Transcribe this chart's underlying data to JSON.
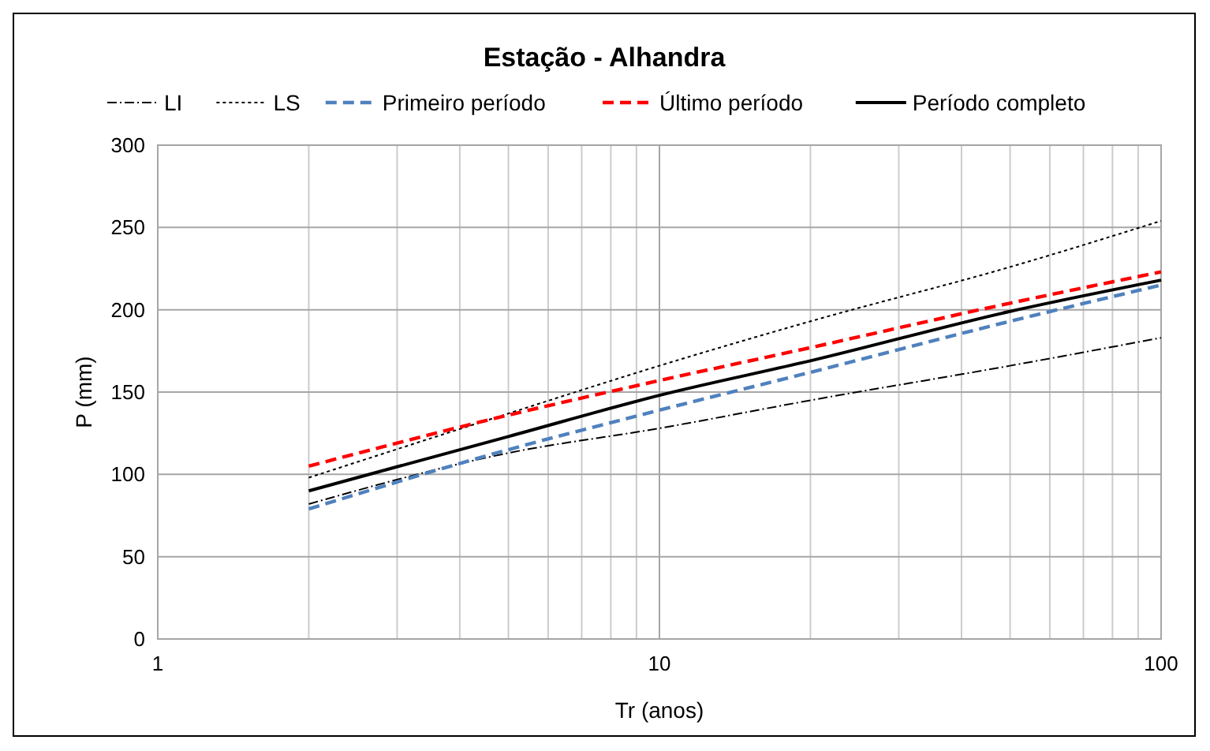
{
  "chart_data": {
    "type": "line",
    "title": "Estação - Alhandra",
    "xlabel": "Tr (anos)",
    "ylabel": "P (mm)",
    "log": "x",
    "grid": true,
    "legend": "top",
    "marker": "none",
    "x": [
      2,
      5,
      10,
      20,
      50,
      100
    ],
    "xlim": [
      1,
      100
    ],
    "xticks": [
      1,
      {
        "value": 2,
        "label": null
      },
      {
        "value": 3,
        "label": null
      },
      {
        "value": 4,
        "label": null
      },
      {
        "value": 5,
        "label": null
      },
      {
        "value": 6,
        "label": null
      },
      {
        "value": 7,
        "label": null
      },
      {
        "value": 8,
        "label": null
      },
      {
        "value": 9,
        "label": null
      },
      10,
      {
        "value": 20,
        "label": null
      },
      {
        "value": 30,
        "label": null
      },
      {
        "value": 40,
        "label": null
      },
      {
        "value": 50,
        "label": null
      },
      {
        "value": 60,
        "label": null
      },
      {
        "value": 70,
        "label": null
      },
      {
        "value": 80,
        "label": null
      },
      {
        "value": 90,
        "label": null
      },
      100
    ],
    "ylim": [
      0,
      300
    ],
    "yticks": [
      0,
      50,
      100,
      150,
      200,
      250,
      300
    ],
    "series": [
      {
        "name": "LI",
        "color": "#000000",
        "line_style": "dashdot",
        "values": [
          82,
          113,
          128,
          145,
          166,
          183
        ]
      },
      {
        "name": "LS",
        "color": "#000000",
        "line_style": "dotted",
        "values": [
          98,
          137,
          166,
          193,
          226,
          254
        ]
      },
      {
        "name": "Primeiro período",
        "color": "#4f81bd",
        "line_style": "dashed",
        "values": [
          79,
          115,
          139,
          162,
          193,
          215
        ]
      },
      {
        "name": "Último período",
        "color": "#ff0000",
        "line_style": "dashed",
        "values": [
          105,
          136,
          157,
          177,
          204,
          223
        ]
      },
      {
        "name": "Período completo",
        "color": "#000000",
        "line_style": "solid",
        "values": [
          90,
          123,
          148,
          169,
          199,
          218
        ]
      }
    ]
  }
}
